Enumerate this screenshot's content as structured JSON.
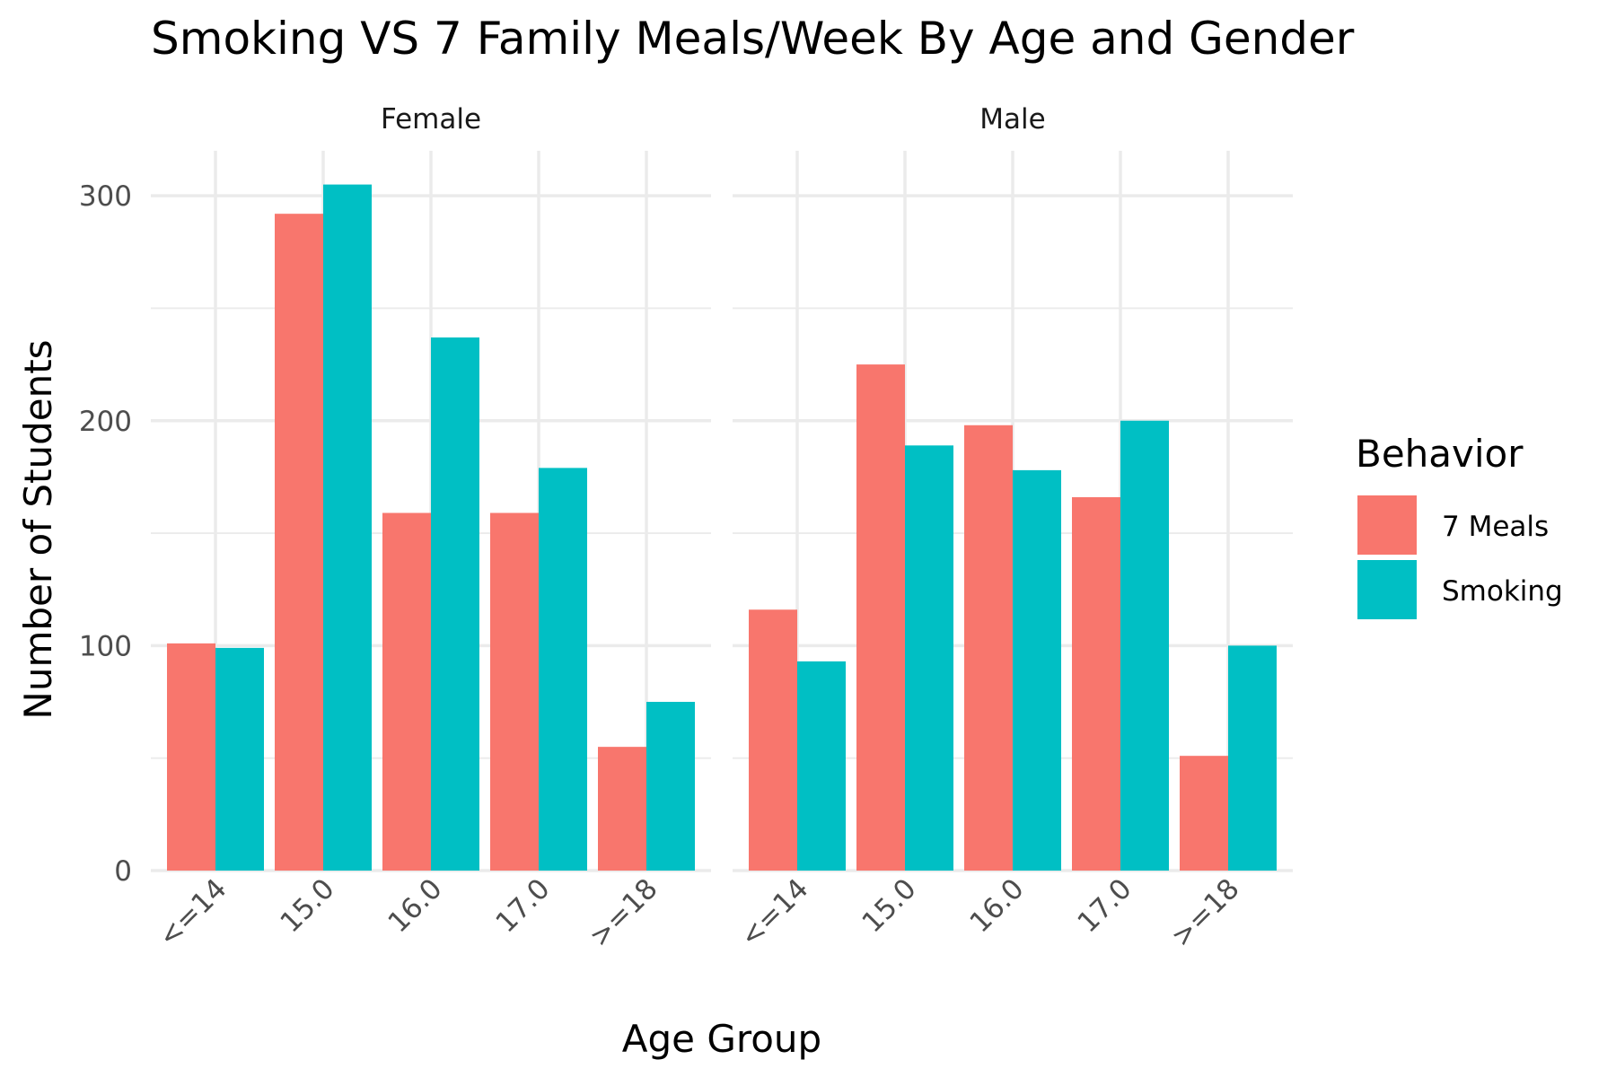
{
  "chart_data": {
    "type": "bar",
    "title": "Smoking VS 7 Family Meals/Week By Age and Gender",
    "xlabel": "Age Group",
    "ylabel": "Number of Students",
    "ylim": [
      0,
      320
    ],
    "yticks": [
      0,
      100,
      200,
      300
    ],
    "categories": [
      "<=14",
      "15.0",
      "16.0",
      "17.0",
      ">=18"
    ],
    "legend": {
      "title": "Behavior",
      "position": "right"
    },
    "grid": true,
    "panels": [
      {
        "name": "Female",
        "series": [
          {
            "name": "7 Meals",
            "color": "#F8766D",
            "values": [
              101,
              292,
              159,
              159,
              55
            ]
          },
          {
            "name": "Smoking",
            "color": "#00BFC4",
            "values": [
              99,
              305,
              237,
              179,
              75
            ]
          }
        ]
      },
      {
        "name": "Male",
        "series": [
          {
            "name": "7 Meals",
            "color": "#F8766D",
            "values": [
              116,
              225,
              198,
              166,
              51
            ]
          },
          {
            "name": "Smoking",
            "color": "#00BFC4",
            "values": [
              93,
              189,
              178,
              200,
              100
            ]
          }
        ]
      }
    ]
  }
}
